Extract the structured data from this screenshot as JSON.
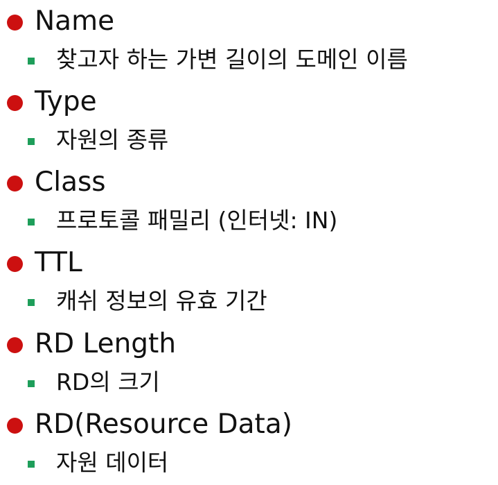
{
  "fields": [
    {
      "title": "Name",
      "description": "찾고자 하는 가변 길이의 도메인 이름"
    },
    {
      "title": "Type",
      "description": "자원의 종류"
    },
    {
      "title": "Class",
      "description": "프로토콜 패밀리 (인터넷: IN)"
    },
    {
      "title": "TTL",
      "description": "캐쉬 정보의 유효 기간"
    },
    {
      "title": "RD Length",
      "description": "RD의 크기"
    },
    {
      "title": "RD(Resource Data)",
      "description": "자원 데이터"
    }
  ],
  "colors": {
    "main_bullet": "#cc1010",
    "sub_bullet": "#1e9e5a",
    "text": "#111111"
  }
}
